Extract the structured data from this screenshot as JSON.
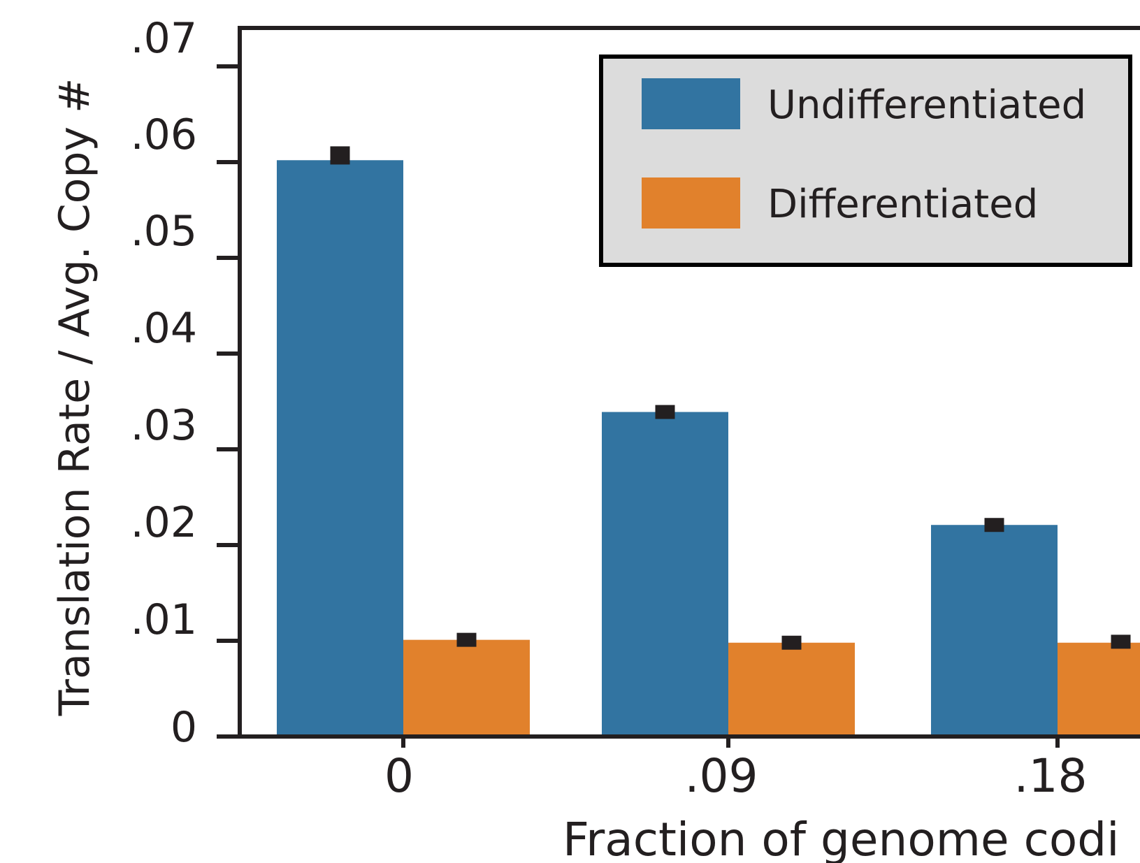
{
  "chart_data": {
    "type": "bar",
    "ylabel": "Translation Rate / Avg. Copy #",
    "xlabel": "Fraction of genome codi",
    "categories": [
      "0",
      ".09",
      ".18"
    ],
    "series": [
      {
        "name": "Undifferentiated",
        "color": "#3274a1",
        "values": [
          0.0602,
          0.0339,
          0.0221
        ],
        "error_marks": [
          0.0607,
          0.0339,
          0.0221
        ]
      },
      {
        "name": "Differentiated",
        "color": "#e1812c",
        "values": [
          0.0101,
          0.0098,
          0.0098
        ],
        "error_marks": [
          0.0101,
          0.0098,
          0.0099
        ]
      }
    ],
    "ylim": [
      0,
      0.074
    ],
    "yticks": [
      0,
      0.01,
      0.02,
      0.03,
      0.04,
      0.05,
      0.06,
      0.07
    ],
    "ytick_labels": [
      "0",
      ".01",
      ".02",
      ".03",
      ".04",
      ".05",
      ".06",
      ".07"
    ],
    "legend_position": "top-right",
    "legend_background": "#dcdcdc",
    "grid": false
  }
}
